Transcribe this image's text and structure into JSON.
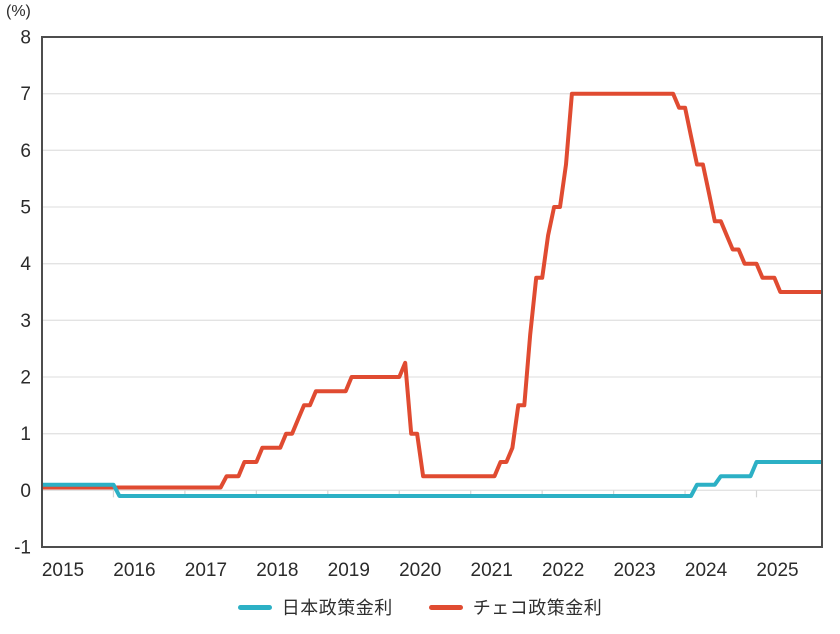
{
  "page": {
    "unit_label": "(%)"
  },
  "chart_data": {
    "type": "line",
    "title": "",
    "xlabel": "",
    "ylabel": "(%)",
    "ylim": [
      -1,
      8
    ],
    "yticks": [
      8,
      7,
      6,
      5,
      4,
      3,
      2,
      1,
      0,
      -1
    ],
    "grid": "horizontal-only",
    "legend_position": "bottom-center",
    "x_frequency": "monthly",
    "x_start": "2015-01",
    "x_end": "2025-12",
    "xtick_labels": [
      "2015",
      "2016",
      "2017",
      "2018",
      "2019",
      "2020",
      "2021",
      "2022",
      "2023",
      "2024",
      "2025"
    ],
    "axis_colors": {
      "grid": "#e3e3e3",
      "border": "#4d4d4d",
      "tick": "#d5d5d5",
      "label": "#2b2b2b"
    },
    "series": [
      {
        "name": "日本政策金利",
        "color": "#2cb0c5",
        "values": [
          0.1,
          0.1,
          0.1,
          0.1,
          0.1,
          0.1,
          0.1,
          0.1,
          0.1,
          0.1,
          0.1,
          0.1,
          0.1,
          -0.1,
          -0.1,
          -0.1,
          -0.1,
          -0.1,
          -0.1,
          -0.1,
          -0.1,
          -0.1,
          -0.1,
          -0.1,
          -0.1,
          -0.1,
          -0.1,
          -0.1,
          -0.1,
          -0.1,
          -0.1,
          -0.1,
          -0.1,
          -0.1,
          -0.1,
          -0.1,
          -0.1,
          -0.1,
          -0.1,
          -0.1,
          -0.1,
          -0.1,
          -0.1,
          -0.1,
          -0.1,
          -0.1,
          -0.1,
          -0.1,
          -0.1,
          -0.1,
          -0.1,
          -0.1,
          -0.1,
          -0.1,
          -0.1,
          -0.1,
          -0.1,
          -0.1,
          -0.1,
          -0.1,
          -0.1,
          -0.1,
          -0.1,
          -0.1,
          -0.1,
          -0.1,
          -0.1,
          -0.1,
          -0.1,
          -0.1,
          -0.1,
          -0.1,
          -0.1,
          -0.1,
          -0.1,
          -0.1,
          -0.1,
          -0.1,
          -0.1,
          -0.1,
          -0.1,
          -0.1,
          -0.1,
          -0.1,
          -0.1,
          -0.1,
          -0.1,
          -0.1,
          -0.1,
          -0.1,
          -0.1,
          -0.1,
          -0.1,
          -0.1,
          -0.1,
          -0.1,
          -0.1,
          -0.1,
          -0.1,
          -0.1,
          -0.1,
          -0.1,
          -0.1,
          -0.1,
          -0.1,
          -0.1,
          -0.1,
          -0.1,
          -0.1,
          -0.1,
          0.1,
          0.1,
          0.1,
          0.1,
          0.25,
          0.25,
          0.25,
          0.25,
          0.25,
          0.25,
          0.5,
          0.5,
          0.5,
          0.5,
          0.5,
          0.5,
          0.5,
          0.5,
          0.5,
          0.5,
          0.5,
          0.5
        ]
      },
      {
        "name": "チェコ政策金利",
        "color": "#e04b31",
        "values": [
          0.05,
          0.05,
          0.05,
          0.05,
          0.05,
          0.05,
          0.05,
          0.05,
          0.05,
          0.05,
          0.05,
          0.05,
          0.05,
          0.05,
          0.05,
          0.05,
          0.05,
          0.05,
          0.05,
          0.05,
          0.05,
          0.05,
          0.05,
          0.05,
          0.05,
          0.05,
          0.05,
          0.05,
          0.05,
          0.05,
          0.05,
          0.25,
          0.25,
          0.25,
          0.5,
          0.5,
          0.5,
          0.75,
          0.75,
          0.75,
          0.75,
          1.0,
          1.0,
          1.25,
          1.5,
          1.5,
          1.75,
          1.75,
          1.75,
          1.75,
          1.75,
          1.75,
          2.0,
          2.0,
          2.0,
          2.0,
          2.0,
          2.0,
          2.0,
          2.0,
          2.0,
          2.25,
          1.0,
          1.0,
          0.25,
          0.25,
          0.25,
          0.25,
          0.25,
          0.25,
          0.25,
          0.25,
          0.25,
          0.25,
          0.25,
          0.25,
          0.25,
          0.5,
          0.5,
          0.75,
          1.5,
          1.5,
          2.75,
          3.75,
          3.75,
          4.5,
          5.0,
          5.0,
          5.75,
          7.0,
          7.0,
          7.0,
          7.0,
          7.0,
          7.0,
          7.0,
          7.0,
          7.0,
          7.0,
          7.0,
          7.0,
          7.0,
          7.0,
          7.0,
          7.0,
          7.0,
          7.0,
          6.75,
          6.75,
          6.25,
          5.75,
          5.75,
          5.25,
          4.75,
          4.75,
          4.5,
          4.25,
          4.25,
          4.0,
          4.0,
          4.0,
          3.75,
          3.75,
          3.75,
          3.5,
          3.5,
          3.5,
          3.5,
          3.5,
          3.5,
          3.5,
          3.5
        ]
      }
    ]
  }
}
